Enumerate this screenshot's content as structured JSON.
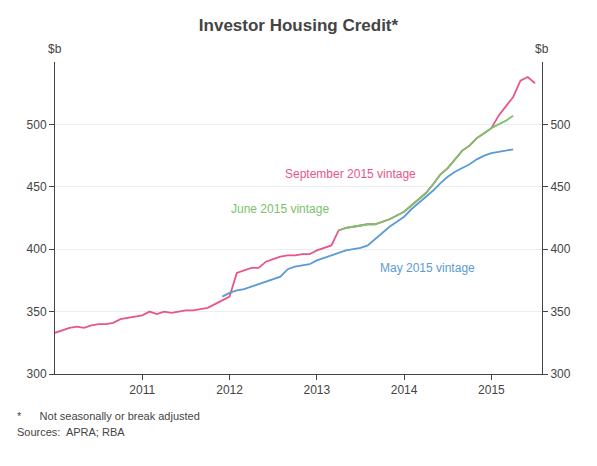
{
  "chart_data": {
    "type": "line",
    "title": "Investor Housing Credit*",
    "ylabel": "$b",
    "y2label": "$b",
    "annotations": [
      "*      Not seasonally or break adjusted",
      "Sources:  APRA; RBA"
    ],
    "xlim": [
      2010.0,
      2015.58
    ],
    "xticks": [
      2011,
      2012,
      2013,
      2014,
      2015
    ],
    "ylim": [
      300,
      550
    ],
    "yticks": [
      300,
      350,
      400,
      450,
      500
    ],
    "y2lim": [
      300,
      550
    ],
    "y2ticks": [
      300,
      350,
      400,
      450,
      500
    ],
    "grid": true,
    "series": [
      {
        "name": "September 2015 vintage",
        "color": "#e8558a",
        "x": [
          2010.0,
          2010.083,
          2010.167,
          2010.25,
          2010.333,
          2010.417,
          2010.5,
          2010.583,
          2010.667,
          2010.75,
          2010.833,
          2010.917,
          2011.0,
          2011.083,
          2011.167,
          2011.25,
          2011.333,
          2011.417,
          2011.5,
          2011.583,
          2011.667,
          2011.75,
          2011.833,
          2011.917,
          2012.0,
          2012.083,
          2012.167,
          2012.25,
          2012.333,
          2012.417,
          2012.5,
          2012.583,
          2012.667,
          2012.75,
          2012.833,
          2012.917,
          2013.0,
          2013.083,
          2013.167,
          2013.25,
          2013.333,
          2013.417,
          2013.5,
          2013.583,
          2013.667,
          2013.75,
          2013.833,
          2013.917,
          2014.0,
          2014.083,
          2014.167,
          2014.25,
          2014.333,
          2014.417,
          2014.5,
          2014.583,
          2014.667,
          2014.75,
          2014.833,
          2014.917,
          2015.0,
          2015.083,
          2015.167,
          2015.25,
          2015.333,
          2015.417,
          2015.5
        ],
        "values": [
          333,
          335,
          337,
          338,
          337,
          339,
          340,
          340,
          341,
          344,
          345,
          346,
          347,
          350,
          348,
          350,
          349,
          350,
          351,
          351,
          352,
          353,
          356,
          359,
          362,
          381,
          383,
          385,
          385,
          390,
          392,
          394,
          395,
          395,
          396,
          396,
          399,
          401,
          403,
          415,
          417,
          418,
          419,
          420,
          420,
          422,
          424,
          427,
          430,
          435,
          440,
          445,
          452,
          460,
          465,
          472,
          479,
          483,
          489,
          493,
          497,
          507,
          515,
          522,
          535,
          538,
          533
        ]
      },
      {
        "name": "June 2015 vintage",
        "color": "#7ac36a",
        "x": [
          2013.25,
          2013.333,
          2013.417,
          2013.5,
          2013.583,
          2013.667,
          2013.75,
          2013.833,
          2013.917,
          2014.0,
          2014.083,
          2014.167,
          2014.25,
          2014.333,
          2014.417,
          2014.5,
          2014.583,
          2014.667,
          2014.75,
          2014.833,
          2014.917,
          2015.0,
          2015.083,
          2015.167,
          2015.25
        ],
        "values": [
          415,
          417,
          418,
          419,
          420,
          420,
          422,
          424,
          427,
          430,
          435,
          440,
          445,
          452,
          460,
          465,
          472,
          479,
          483,
          489,
          493,
          497,
          500,
          503,
          507
        ]
      },
      {
        "name": "May 2015 vintage",
        "color": "#5b9bd5",
        "x": [
          2011.917,
          2012.0,
          2012.083,
          2012.167,
          2012.25,
          2012.333,
          2012.417,
          2012.5,
          2012.583,
          2012.667,
          2012.75,
          2012.833,
          2012.917,
          2013.0,
          2013.083,
          2013.167,
          2013.25,
          2013.333,
          2013.417,
          2013.5,
          2013.583,
          2013.667,
          2013.75,
          2013.833,
          2013.917,
          2014.0,
          2014.083,
          2014.167,
          2014.25,
          2014.333,
          2014.417,
          2014.5,
          2014.583,
          2014.667,
          2014.75,
          2014.833,
          2014.917,
          2015.0,
          2015.083,
          2015.167,
          2015.25
        ],
        "values": [
          362,
          365,
          367,
          368,
          370,
          372,
          374,
          376,
          378,
          384,
          386,
          387,
          388,
          391,
          393,
          395,
          397,
          399,
          400,
          401,
          403,
          408,
          413,
          418,
          422,
          426,
          432,
          437,
          442,
          447,
          453,
          458,
          462,
          465,
          468,
          472,
          475,
          477,
          478,
          479,
          480
        ]
      }
    ]
  }
}
